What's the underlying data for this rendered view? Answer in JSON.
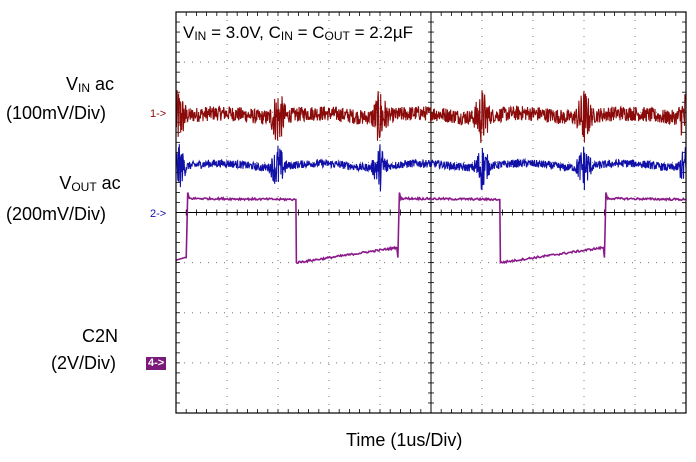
{
  "chart_data": {
    "type": "line",
    "title_parts": {
      "v": "V",
      "v_sub": "IN",
      "v_rest": " = 3.0V, ",
      "c": "C",
      "c_sub": "IN",
      "eq": " = C",
      "c2_sub": "OUT",
      "c_rest": " = 2.2µF"
    },
    "xlabel": "Time (1us/Div)",
    "grid": true,
    "divisions": {
      "x": 10,
      "y": 8
    },
    "colors": {
      "ch1": "#8b0a0a",
      "ch2": "#1010a8",
      "ch4": "#8a1a8a"
    },
    "channels": [
      {
        "id": "1",
        "name_main": "V",
        "name_sub": "IN",
        "name_rest": " ac",
        "scale": "(100mV/Div)",
        "marker": "1->",
        "level_div": 5.9,
        "ripple_div": 0.15,
        "spike_times_div": [
          0.1,
          4.0,
          8.0,
          12.0,
          16.0,
          20.0
        ]
      },
      {
        "id": "2",
        "name_main": "V",
        "name_sub": "OUT",
        "name_rest": " ac",
        "scale": "(200mV/Div)",
        "marker": "2->",
        "level_div": 4.9,
        "ripple_div": 0.08,
        "spike_times_div": [
          0.1,
          4.0,
          8.0,
          12.0,
          16.0,
          20.0
        ]
      },
      {
        "id": "4",
        "name_main": "C2N",
        "name_sub": "",
        "name_rest": "",
        "scale": "(2V/Div)",
        "marker": "4->",
        "period_div": 4.0,
        "high_div": 4.3,
        "low_start_div": 3.0,
        "low_end_div": 3.3,
        "high_start_div": 0.0,
        "high_end_div": 0.05,
        "edges_div": [
          0.2,
          2.35,
          4.35,
          6.35,
          8.4
        ]
      }
    ]
  }
}
